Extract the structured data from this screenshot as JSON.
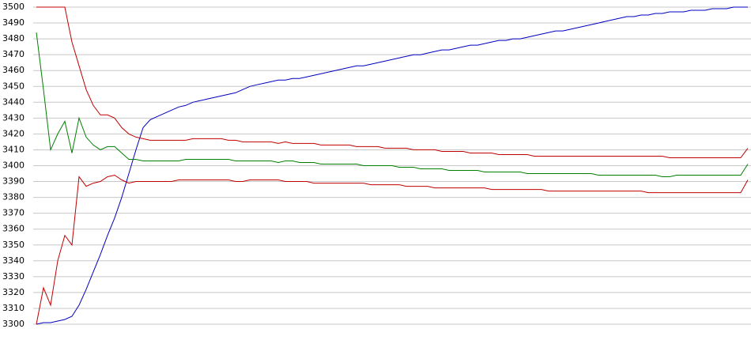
{
  "chart_data": {
    "type": "line",
    "ylim": [
      3300,
      3500
    ],
    "yticks": [
      3300,
      3310,
      3320,
      3330,
      3340,
      3350,
      3360,
      3370,
      3380,
      3390,
      3400,
      3410,
      3420,
      3430,
      3440,
      3450,
      3460,
      3470,
      3480,
      3490,
      3500
    ],
    "grid": true,
    "series": [
      {
        "color": "#0000c0",
        "values": [
          3300,
          3301,
          3301,
          3302,
          3303,
          3305,
          3312,
          3322,
          3333,
          3344,
          3356,
          3367,
          3380,
          3395,
          3410,
          3424,
          3429,
          3431,
          3433,
          3435,
          3437,
          3438,
          3440,
          3441,
          3442,
          3443,
          3444,
          3445,
          3446,
          3448,
          3450,
          3451,
          3452,
          3453,
          3454,
          3454,
          3455,
          3455,
          3456,
          3457,
          3458,
          3459,
          3460,
          3461,
          3462,
          3463,
          3463,
          3464,
          3465,
          3466,
          3467,
          3468,
          3469,
          3470,
          3470,
          3471,
          3472,
          3473,
          3473,
          3474,
          3475,
          3476,
          3476,
          3477,
          3478,
          3479,
          3479,
          3480,
          3480,
          3481,
          3482,
          3483,
          3484,
          3485,
          3485,
          3486,
          3487,
          3488,
          3489,
          3490,
          3491,
          3492,
          3493,
          3494,
          3494,
          3495,
          3495,
          3496,
          3496,
          3497,
          3497,
          3497,
          3498,
          3498,
          3498,
          3499,
          3499,
          3499,
          3500,
          3500,
          3500
        ]
      },
      {
        "color": "#c00000",
        "values": [
          3500,
          3500,
          3500,
          3500,
          3500,
          3478,
          3463,
          3448,
          3438,
          3432,
          3432,
          3430,
          3424,
          3420,
          3418,
          3417,
          3416,
          3416,
          3416,
          3416,
          3416,
          3416,
          3417,
          3417,
          3417,
          3417,
          3417,
          3416,
          3416,
          3415,
          3415,
          3415,
          3415,
          3415,
          3414,
          3415,
          3414,
          3414,
          3414,
          3414,
          3413,
          3413,
          3413,
          3413,
          3413,
          3412,
          3412,
          3412,
          3412,
          3411,
          3411,
          3411,
          3411,
          3410,
          3410,
          3410,
          3410,
          3409,
          3409,
          3409,
          3409,
          3408,
          3408,
          3408,
          3408,
          3407,
          3407,
          3407,
          3407,
          3407,
          3406,
          3406,
          3406,
          3406,
          3406,
          3406,
          3406,
          3406,
          3406,
          3406,
          3406,
          3406,
          3406,
          3406,
          3406,
          3406,
          3406,
          3406,
          3406,
          3405,
          3405,
          3405,
          3405,
          3405,
          3405,
          3405,
          3405,
          3405,
          3405,
          3405,
          3411
        ]
      },
      {
        "color": "#008000",
        "values": [
          3484,
          3448,
          3410,
          3420,
          3428,
          3408,
          3430,
          3418,
          3413,
          3410,
          3412,
          3412,
          3408,
          3404,
          3404,
          3403,
          3403,
          3403,
          3403,
          3403,
          3403,
          3404,
          3404,
          3404,
          3404,
          3404,
          3404,
          3404,
          3403,
          3403,
          3403,
          3403,
          3403,
          3403,
          3402,
          3403,
          3403,
          3402,
          3402,
          3402,
          3401,
          3401,
          3401,
          3401,
          3401,
          3401,
          3400,
          3400,
          3400,
          3400,
          3400,
          3399,
          3399,
          3399,
          3398,
          3398,
          3398,
          3398,
          3397,
          3397,
          3397,
          3397,
          3397,
          3396,
          3396,
          3396,
          3396,
          3396,
          3396,
          3395,
          3395,
          3395,
          3395,
          3395,
          3395,
          3395,
          3395,
          3395,
          3395,
          3394,
          3394,
          3394,
          3394,
          3394,
          3394,
          3394,
          3394,
          3394,
          3393,
          3393,
          3394,
          3394,
          3394,
          3394,
          3394,
          3394,
          3394,
          3394,
          3394,
          3394,
          3401
        ]
      },
      {
        "color": "#c00000",
        "values": [
          3300,
          3323,
          3312,
          3340,
          3356,
          3350,
          3393,
          3387,
          3389,
          3390,
          3393,
          3394,
          3391,
          3389,
          3390,
          3390,
          3390,
          3390,
          3390,
          3390,
          3391,
          3391,
          3391,
          3391,
          3391,
          3391,
          3391,
          3391,
          3390,
          3390,
          3391,
          3391,
          3391,
          3391,
          3391,
          3390,
          3390,
          3390,
          3390,
          3389,
          3389,
          3389,
          3389,
          3389,
          3389,
          3389,
          3389,
          3388,
          3388,
          3388,
          3388,
          3388,
          3387,
          3387,
          3387,
          3387,
          3386,
          3386,
          3386,
          3386,
          3386,
          3386,
          3386,
          3386,
          3385,
          3385,
          3385,
          3385,
          3385,
          3385,
          3385,
          3385,
          3384,
          3384,
          3384,
          3384,
          3384,
          3384,
          3384,
          3384,
          3384,
          3384,
          3384,
          3384,
          3384,
          3384,
          3383,
          3383,
          3383,
          3383,
          3383,
          3383,
          3383,
          3383,
          3383,
          3383,
          3383,
          3383,
          3383,
          3383,
          3391
        ]
      }
    ]
  }
}
